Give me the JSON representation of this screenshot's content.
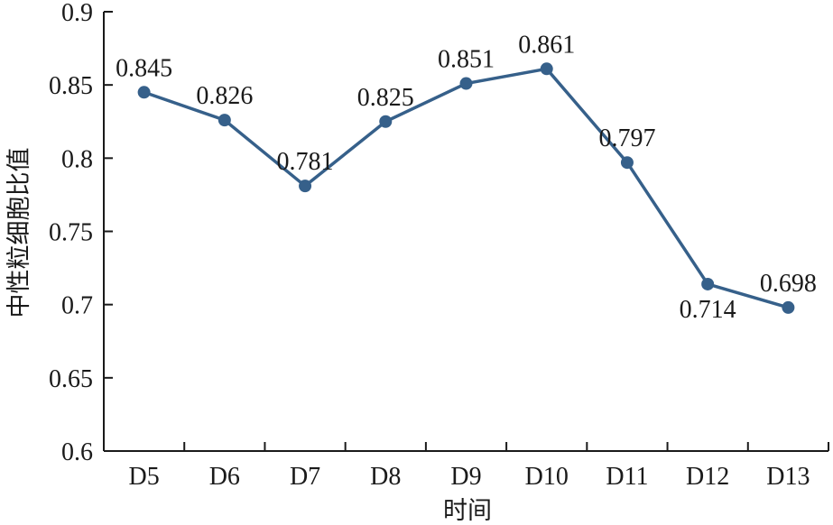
{
  "chart_data": {
    "type": "line",
    "title": "",
    "xlabel": "时间",
    "ylabel": "中性粒细胞比值",
    "categories": [
      "D5",
      "D6",
      "D7",
      "D8",
      "D9",
      "D10",
      "D11",
      "D12",
      "D13"
    ],
    "series": [
      {
        "values": [
          0.845,
          0.826,
          0.781,
          0.825,
          0.851,
          0.861,
          0.797,
          0.714,
          0.698
        ],
        "labels": [
          "0.845",
          "0.826",
          "0.781",
          "0.825",
          "0.851",
          "0.861",
          "0.797",
          "0.714",
          "0.698"
        ],
        "color": "#36608a"
      }
    ],
    "ylim": [
      0.6,
      0.9
    ],
    "yticks": [
      "0.6",
      "0.65",
      "0.7",
      "0.75",
      "0.8",
      "0.85",
      "0.9"
    ],
    "grid": false,
    "legend": "none"
  }
}
